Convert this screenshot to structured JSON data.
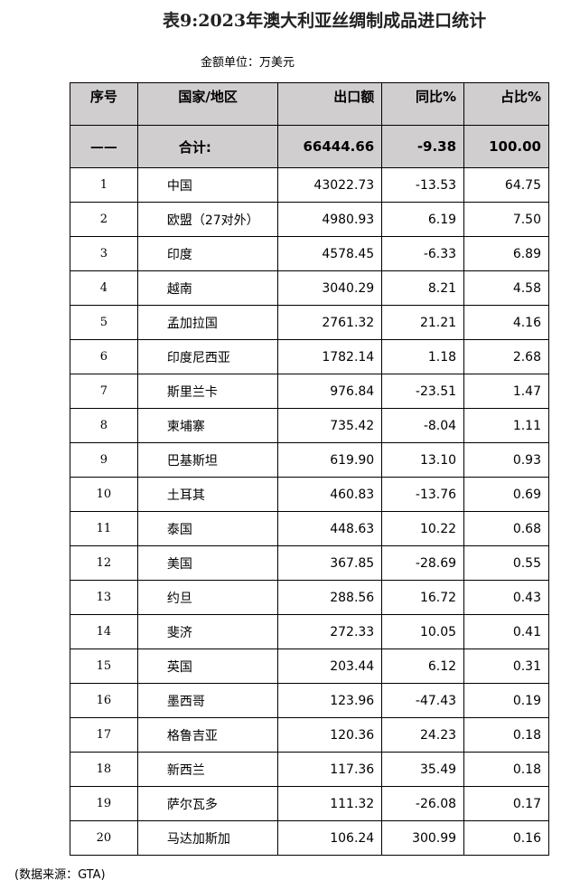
{
  "title": "表9:2023年澳大利亚丝绸制成品进口统计",
  "unit": "金额单位：万美元",
  "headers": [
    "序号",
    "国家/地区",
    "出口额",
    "同比%",
    "占比%"
  ],
  "total": {
    "rank": "——",
    "name": "合计:",
    "value": "66444.66",
    "yoy": "-9.38",
    "share": "100.00"
  },
  "rows": [
    [
      "1",
      "中国",
      "43022.73",
      "-13.53",
      "64.75"
    ],
    [
      "2",
      "欧盟（27对外）",
      "4980.93",
      "6.19",
      "7.50"
    ],
    [
      "3",
      "印度",
      "4578.45",
      "-6.33",
      "6.89"
    ],
    [
      "4",
      "越南",
      "3040.29",
      "8.21",
      "4.58"
    ],
    [
      "5",
      "孟加拉国",
      "2761.32",
      "21.21",
      "4.16"
    ],
    [
      "6",
      "印度尼西亚",
      "1782.14",
      "1.18",
      "2.68"
    ],
    [
      "7",
      "斯里兰卡",
      "976.84",
      "-23.51",
      "1.47"
    ],
    [
      "8",
      "柬埔寨",
      "735.42",
      "-8.04",
      "1.11"
    ],
    [
      "9",
      "巴基斯坦",
      "619.90",
      "13.10",
      "0.93"
    ],
    [
      "10",
      "土耳其",
      "460.83",
      "-13.76",
      "0.69"
    ],
    [
      "11",
      "泰国",
      "448.63",
      "10.22",
      "0.68"
    ],
    [
      "12",
      "美国",
      "367.85",
      "-28.69",
      "0.55"
    ],
    [
      "13",
      "约旦",
      "288.56",
      "16.72",
      "0.43"
    ],
    [
      "14",
      "斐济",
      "272.33",
      "10.05",
      "0.41"
    ],
    [
      "15",
      "英国",
      "203.44",
      "6.12",
      "0.31"
    ],
    [
      "16",
      "墨西哥",
      "123.96",
      "-47.43",
      "0.19"
    ],
    [
      "17",
      "格鲁吉亚",
      "120.36",
      "24.23",
      "0.18"
    ],
    [
      "18",
      "新西兰",
      "117.36",
      "35.49",
      "0.18"
    ],
    [
      "19",
      "萨尔瓦多",
      "111.32",
      "-26.08",
      "0.17"
    ],
    [
      "20",
      "马达加斯加",
      "106.24",
      "300.99",
      "0.16"
    ]
  ],
  "note": "(数据来源：GTA)"
}
